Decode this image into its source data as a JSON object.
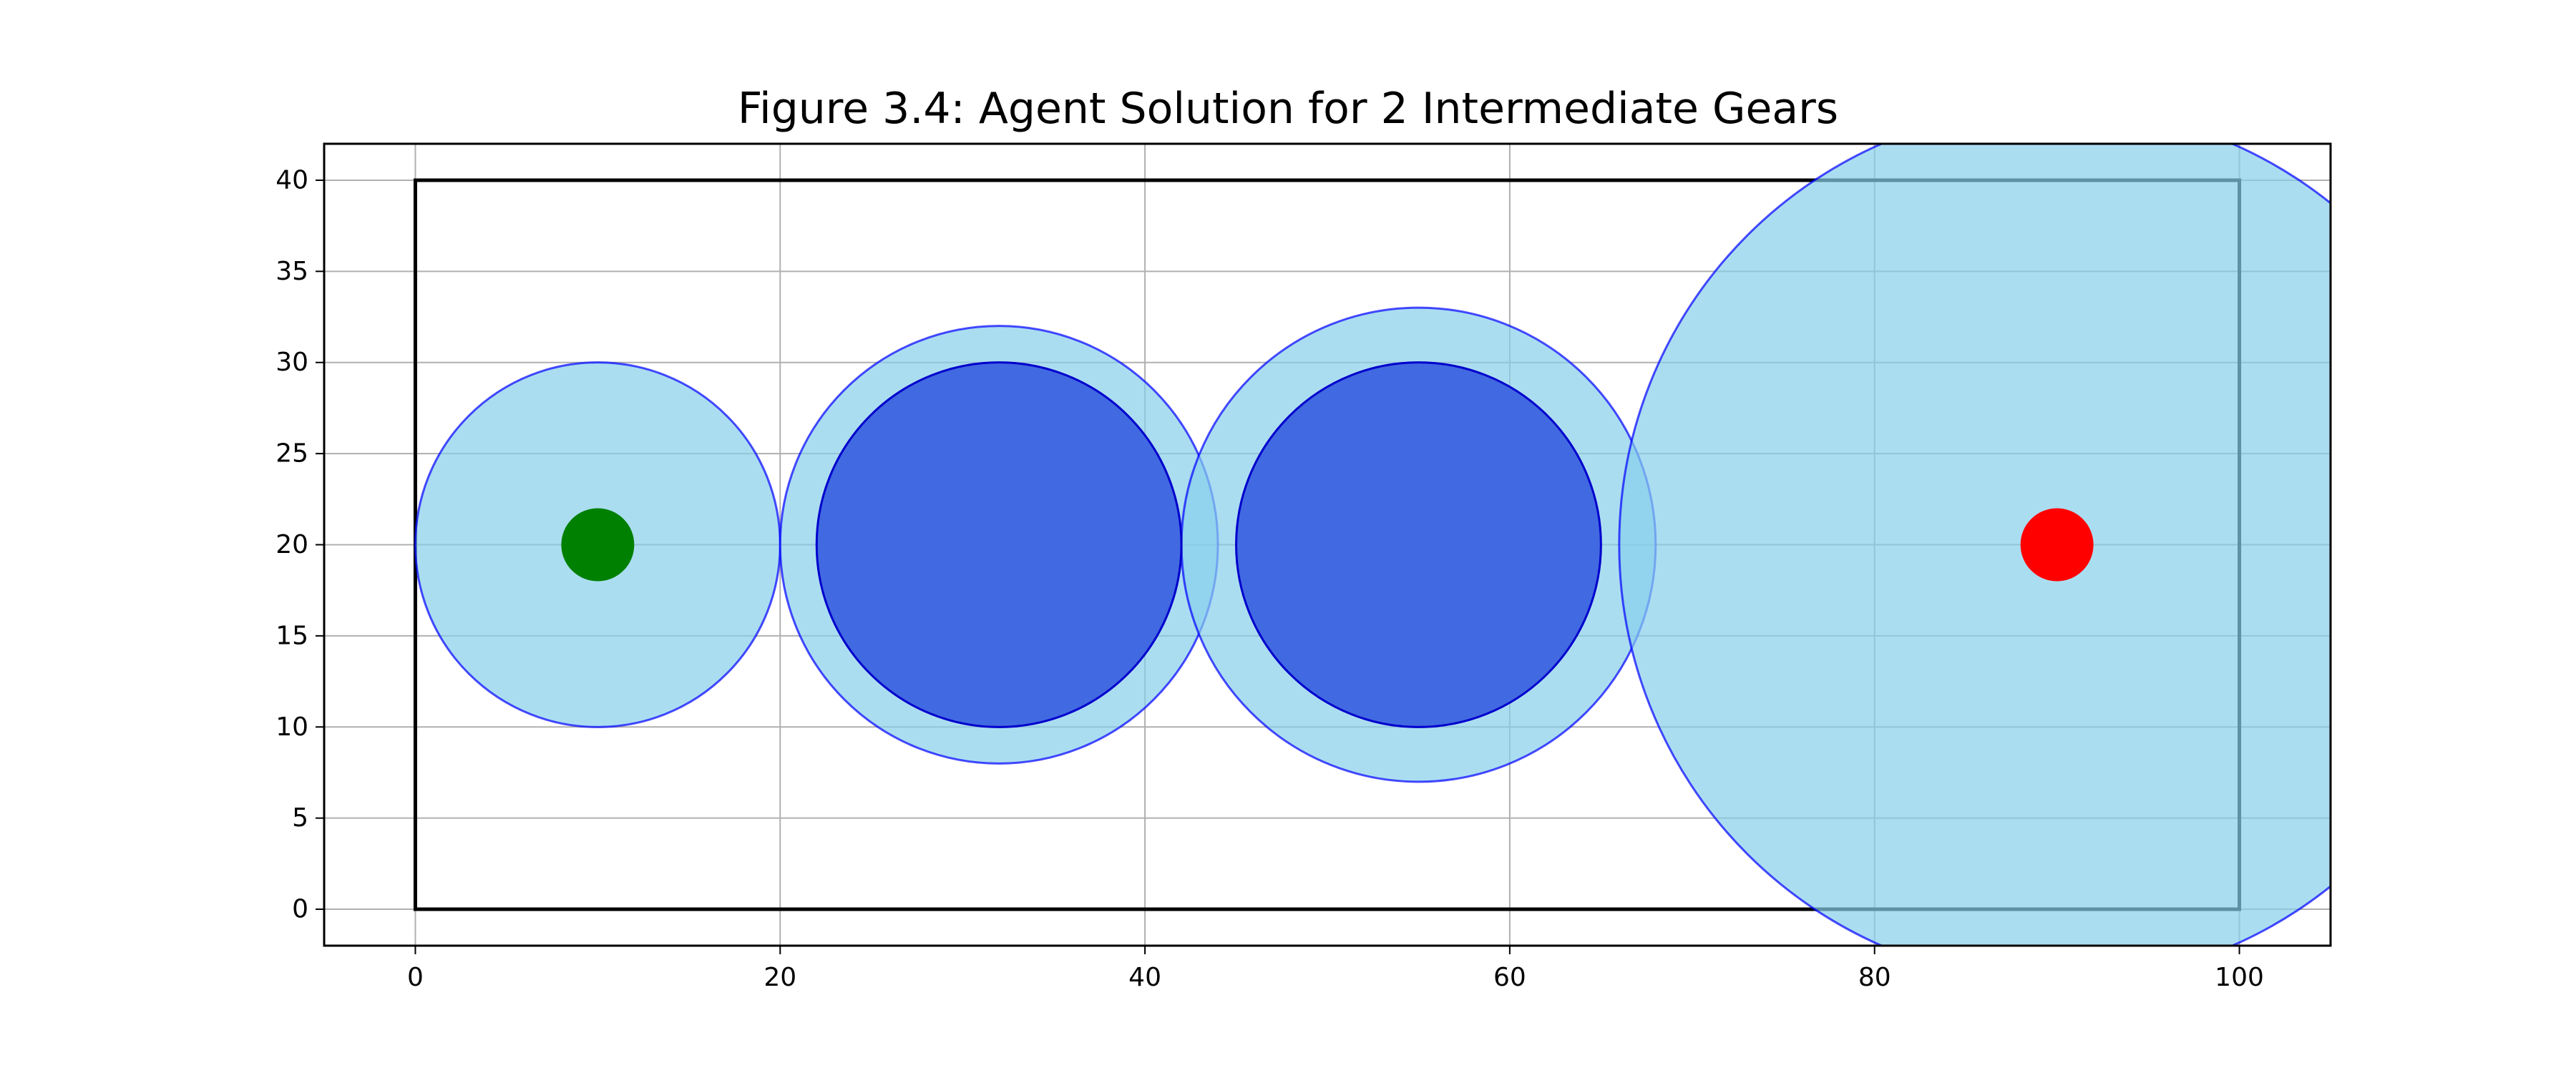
{
  "chart_data": {
    "type": "scatter",
    "title": "Figure 3.4: Agent Solution for 2 Intermediate Gears",
    "xlabel": "",
    "ylabel": "",
    "xlim": [
      -5,
      105
    ],
    "ylim": [
      -2,
      42
    ],
    "x_ticks": [
      0,
      20,
      40,
      60,
      80,
      100
    ],
    "y_ticks": [
      0,
      5,
      10,
      15,
      20,
      25,
      30,
      35,
      40
    ],
    "grid": true,
    "legend": "none",
    "boundary": {
      "x": [
        0,
        100
      ],
      "y": [
        0,
        40
      ],
      "color": "#000000"
    },
    "outer_circles": [
      {
        "cx": 10,
        "cy": 20,
        "r": 10
      },
      {
        "cx": 32,
        "cy": 20,
        "r": 12
      },
      {
        "cx": 55,
        "cy": 20,
        "r": 13
      },
      {
        "cx": 90,
        "cy": 20,
        "r": 24
      }
    ],
    "inner_circles": [
      {
        "cx": 32,
        "cy": 20,
        "r": 10
      },
      {
        "cx": 55,
        "cy": 20,
        "r": 10
      }
    ],
    "start_point": {
      "x": 10,
      "y": 20,
      "r": 2,
      "color": "#008000"
    },
    "end_point": {
      "x": 90,
      "y": 20,
      "r": 2,
      "color": "#ff0000"
    },
    "colors": {
      "outer_fill": "#87ceeb",
      "outer_stroke": "#0000ff",
      "inner_fill": "#4169e1",
      "inner_stroke": "#0000cd",
      "grid": "#b0b0b0"
    }
  }
}
